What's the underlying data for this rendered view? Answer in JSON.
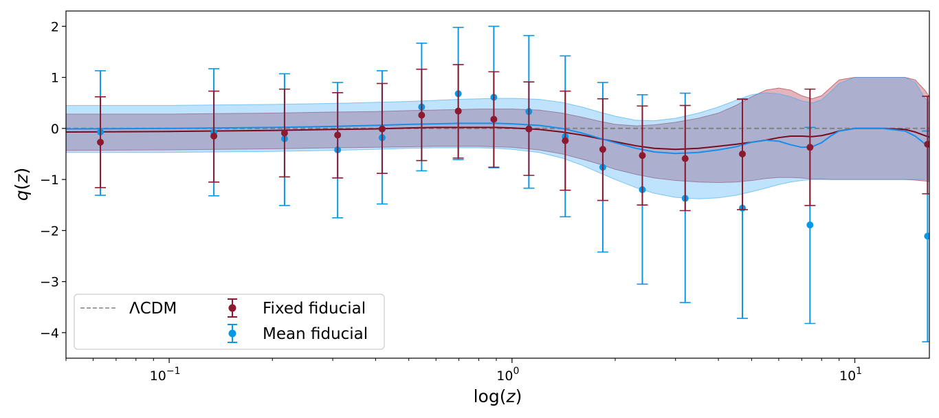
{
  "chart_data": {
    "type": "scatter",
    "title": "",
    "xlabel": "log(z)",
    "ylabel": "q(z)",
    "xscale": "log",
    "xlim": [
      0.05,
      16.5
    ],
    "ylim": [
      -4.5,
      2.3
    ],
    "x_ticks": [
      {
        "value": 0.1,
        "base": "10",
        "exp": "−1"
      },
      {
        "value": 1,
        "base": "10",
        "exp": "0"
      },
      {
        "value": 10,
        "base": "10",
        "exp": "1"
      }
    ],
    "y_ticks": [
      {
        "value": 2,
        "label": "2"
      },
      {
        "value": 1,
        "label": "1"
      },
      {
        "value": 0,
        "label": "0"
      },
      {
        "value": -1,
        "label": "−1"
      },
      {
        "value": -2,
        "label": "−2"
      },
      {
        "value": -3,
        "label": "−3"
      },
      {
        "value": -4,
        "label": "−4"
      }
    ],
    "reference_line": {
      "name": "ΛCDM",
      "y": 0,
      "color": "#a0a0a0",
      "style": "dashed"
    },
    "series": [
      {
        "name": "Fixed fiducial",
        "color": "#8b1a2f",
        "points": [
          {
            "x": 0.063,
            "y": -0.27,
            "err_low": -1.16,
            "err_high": 0.62
          },
          {
            "x": 0.135,
            "y": -0.15,
            "err_low": -1.05,
            "err_high": 0.73
          },
          {
            "x": 0.217,
            "y": -0.09,
            "err_low": -0.95,
            "err_high": 0.77
          },
          {
            "x": 0.31,
            "y": -0.13,
            "err_low": -0.97,
            "err_high": 0.7
          },
          {
            "x": 0.418,
            "y": -0.01,
            "err_low": -0.88,
            "err_high": 0.88
          },
          {
            "x": 0.545,
            "y": 0.26,
            "err_low": -0.63,
            "err_high": 1.16
          },
          {
            "x": 0.697,
            "y": 0.34,
            "err_low": -0.58,
            "err_high": 1.25
          },
          {
            "x": 0.885,
            "y": 0.18,
            "err_low": -0.76,
            "err_high": 1.11
          },
          {
            "x": 1.12,
            "y": -0.01,
            "err_low": -0.92,
            "err_high": 0.91
          },
          {
            "x": 1.43,
            "y": -0.24,
            "err_low": -1.21,
            "err_high": 0.73
          },
          {
            "x": 1.84,
            "y": -0.41,
            "err_low": -1.41,
            "err_high": 0.58
          },
          {
            "x": 2.4,
            "y": -0.53,
            "err_low": -1.5,
            "err_high": 0.44
          },
          {
            "x": 3.2,
            "y": -0.59,
            "err_low": -1.61,
            "err_high": 0.45
          },
          {
            "x": 4.7,
            "y": -0.5,
            "err_low": -1.59,
            "err_high": 0.57
          },
          {
            "x": 7.4,
            "y": -0.37,
            "err_low": -1.51,
            "err_high": 0.77
          },
          {
            "x": 16.3,
            "y": -0.31,
            "err_low": -1.28,
            "err_high": 0.63
          }
        ],
        "curve": {
          "x": [
            0.05,
            0.1,
            0.2,
            0.3,
            0.4,
            0.5,
            0.6,
            0.7,
            0.8,
            0.9,
            1.0,
            1.2,
            1.4,
            1.6,
            1.8,
            2.0,
            2.3,
            2.6,
            3.0,
            3.5,
            4.0,
            4.5,
            5.0,
            5.5,
            6.0,
            6.5,
            7.0,
            7.5,
            8.0,
            8.5,
            9.0,
            10.0,
            12.0,
            14.0,
            15.0,
            16.0,
            16.5
          ],
          "y": [
            -0.07,
            -0.06,
            -0.04,
            -0.02,
            -0.01,
            0.01,
            0.02,
            0.02,
            0.02,
            0.02,
            0.01,
            -0.02,
            -0.07,
            -0.13,
            -0.2,
            -0.26,
            -0.34,
            -0.39,
            -0.41,
            -0.39,
            -0.35,
            -0.31,
            -0.27,
            -0.23,
            -0.18,
            -0.15,
            -0.15,
            -0.16,
            -0.14,
            -0.1,
            -0.05,
            0.0,
            0.0,
            -0.02,
            -0.07,
            -0.14,
            -0.17
          ],
          "lo": [
            -0.43,
            -0.42,
            -0.4,
            -0.38,
            -0.37,
            -0.36,
            -0.35,
            -0.35,
            -0.35,
            -0.36,
            -0.37,
            -0.42,
            -0.5,
            -0.6,
            -0.7,
            -0.8,
            -0.9,
            -0.97,
            -1.02,
            -1.05,
            -1.06,
            -1.05,
            -1.02,
            -0.98,
            -0.96,
            -0.96,
            -0.97,
            -0.99,
            -0.99,
            -1.0,
            -1.0,
            -1.0,
            -1.0,
            -1.0,
            -1.01,
            -1.03,
            -1.04
          ],
          "hi": [
            0.28,
            0.28,
            0.3,
            0.32,
            0.33,
            0.35,
            0.36,
            0.37,
            0.38,
            0.38,
            0.38,
            0.36,
            0.3,
            0.22,
            0.14,
            0.08,
            0.05,
            0.07,
            0.12,
            0.2,
            0.3,
            0.45,
            0.62,
            0.75,
            0.79,
            0.75,
            0.64,
            0.58,
            0.64,
            0.8,
            0.95,
            1.0,
            1.0,
            1.0,
            0.95,
            0.75,
            0.62
          ]
        }
      },
      {
        "name": "Mean fiducial",
        "color": "#0898e8",
        "points": [
          {
            "x": 0.063,
            "y": -0.07,
            "err_low": -1.31,
            "err_high": 1.13
          },
          {
            "x": 0.135,
            "y": -0.08,
            "err_low": -1.32,
            "err_high": 1.17
          },
          {
            "x": 0.217,
            "y": -0.2,
            "err_low": -1.51,
            "err_high": 1.07
          },
          {
            "x": 0.31,
            "y": -0.42,
            "err_low": -1.75,
            "err_high": 0.9
          },
          {
            "x": 0.418,
            "y": -0.18,
            "err_low": -1.48,
            "err_high": 1.13
          },
          {
            "x": 0.545,
            "y": 0.42,
            "err_low": -0.83,
            "err_high": 1.67
          },
          {
            "x": 0.697,
            "y": 0.68,
            "err_low": -0.61,
            "err_high": 1.98
          },
          {
            "x": 0.885,
            "y": 0.61,
            "err_low": -0.77,
            "err_high": 2.0
          },
          {
            "x": 1.12,
            "y": 0.33,
            "err_low": -1.17,
            "err_high": 1.82
          },
          {
            "x": 1.43,
            "y": -0.16,
            "err_low": -1.73,
            "err_high": 1.42
          },
          {
            "x": 1.84,
            "y": -0.76,
            "err_low": -2.42,
            "err_high": 0.9
          },
          {
            "x": 2.4,
            "y": -1.2,
            "err_low": -3.05,
            "err_high": 0.66
          },
          {
            "x": 3.2,
            "y": -1.37,
            "err_low": -3.41,
            "err_high": 0.69
          },
          {
            "x": 4.7,
            "y": -1.56,
            "err_low": -3.72,
            "err_high": 0.58
          },
          {
            "x": 7.4,
            "y": -1.89,
            "err_low": -3.82,
            "err_high": 0.02
          },
          {
            "x": 16.3,
            "y": -2.11,
            "err_low": -4.18,
            "err_high": -0.05
          }
        ],
        "curve": {
          "x": [
            0.05,
            0.1,
            0.2,
            0.3,
            0.4,
            0.5,
            0.6,
            0.7,
            0.8,
            0.9,
            1.0,
            1.2,
            1.4,
            1.6,
            1.8,
            2.0,
            2.3,
            2.6,
            3.0,
            3.5,
            4.0,
            4.5,
            5.0,
            5.5,
            6.0,
            6.5,
            7.0,
            7.5,
            8.0,
            8.5,
            9.0,
            10.0,
            12.0,
            14.0,
            15.0,
            16.0,
            16.5
          ],
          "y": [
            -0.01,
            0.0,
            0.02,
            0.04,
            0.06,
            0.08,
            0.09,
            0.1,
            0.1,
            0.1,
            0.09,
            0.06,
            0.0,
            -0.09,
            -0.19,
            -0.28,
            -0.39,
            -0.46,
            -0.49,
            -0.47,
            -0.42,
            -0.36,
            -0.27,
            -0.23,
            -0.25,
            -0.32,
            -0.37,
            -0.36,
            -0.28,
            -0.15,
            -0.05,
            0.0,
            0.0,
            -0.05,
            -0.15,
            -0.3,
            -0.33
          ],
          "lo": [
            -0.47,
            -0.47,
            -0.45,
            -0.43,
            -0.41,
            -0.39,
            -0.38,
            -0.38,
            -0.38,
            -0.39,
            -0.41,
            -0.47,
            -0.58,
            -0.72,
            -0.87,
            -1.0,
            -1.16,
            -1.27,
            -1.35,
            -1.38,
            -1.36,
            -1.31,
            -1.24,
            -1.17,
            -1.1,
            -1.05,
            -1.02,
            -1.0,
            -1.0,
            -1.0,
            -1.0,
            -1.0,
            -1.0,
            -1.0,
            -1.0,
            -1.0,
            -1.0
          ],
          "hi": [
            0.45,
            0.45,
            0.47,
            0.49,
            0.51,
            0.53,
            0.55,
            0.57,
            0.58,
            0.59,
            0.59,
            0.57,
            0.51,
            0.42,
            0.32,
            0.24,
            0.16,
            0.15,
            0.2,
            0.3,
            0.42,
            0.55,
            0.66,
            0.7,
            0.68,
            0.62,
            0.54,
            0.5,
            0.56,
            0.72,
            0.88,
            1.0,
            1.0,
            1.0,
            0.9,
            0.6,
            0.5
          ]
        }
      }
    ],
    "legend": {
      "position": "lower-left",
      "entries": [
        {
          "label": "ΛCDM",
          "kind": "line"
        },
        {
          "label": "Fixed fiducial",
          "kind": "errorbar-red"
        },
        {
          "label": "Mean fiducial",
          "kind": "errorbar-blue"
        }
      ]
    },
    "colors": {
      "fixed_band": "#c76a78",
      "mean_band": "#39a9f5",
      "overlap_band": "#a4b3cf",
      "fixed_line": "#7a0a1e",
      "mean_line": "#1a8de8",
      "reference": "#a0a0a0"
    }
  }
}
